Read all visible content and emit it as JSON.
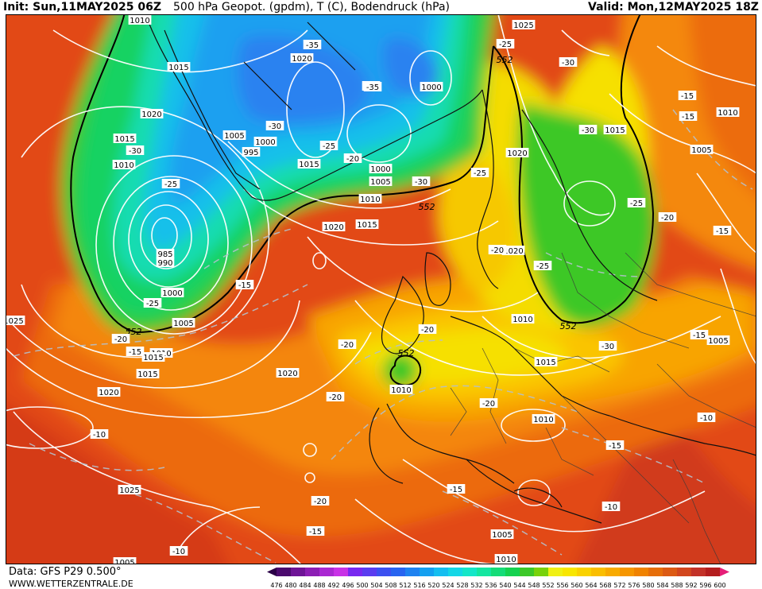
{
  "header": {
    "init": "Init: Sun,11MAY2025 06Z",
    "title": "500 hPa Geopot. (gpdm), T (C), Bodendruck (hPa)",
    "valid": "Valid: Mon,12MAY2025 18Z"
  },
  "footer": {
    "data_source": "Data: GFS P29 0.500°",
    "website": "WWW.WETTERZENTRALE.DE"
  },
  "legend": {
    "values": [
      "476",
      "480",
      "484",
      "488",
      "492",
      "496",
      "500",
      "504",
      "508",
      "512",
      "516",
      "520",
      "524",
      "528",
      "532",
      "536",
      "540",
      "544",
      "548",
      "552",
      "556",
      "560",
      "564",
      "568",
      "572",
      "576",
      "580",
      "584",
      "588",
      "592",
      "596",
      "600"
    ],
    "colors": [
      "#2a0046",
      "#4b0a6e",
      "#6e1496",
      "#8c1eb4",
      "#aa28d2",
      "#c832e6",
      "#7828f0",
      "#5a3cf0",
      "#3c50f0",
      "#2864f0",
      "#1e82f0",
      "#14a0f0",
      "#14bef0",
      "#14d7e6",
      "#14e6c8",
      "#14e6a0",
      "#14dc78",
      "#14d250",
      "#3cc828",
      "#78d20a",
      "#f0f014",
      "#f8e600",
      "#fad200",
      "#fabe00",
      "#f8aa00",
      "#f69600",
      "#f08200",
      "#e66e0a",
      "#dc5a14",
      "#d2461e",
      "#c33228",
      "#b41e1e",
      "#e61e78"
    ]
  },
  "map": {
    "geopotential_label": "552",
    "pressure_labels": [
      "1010",
      "1015",
      "1020",
      "1025",
      "1005",
      "1000",
      "995",
      "990",
      "985"
    ],
    "temperature_labels": [
      "-10",
      "-15",
      "-20",
      "-25",
      "-30",
      "-35"
    ],
    "pressure_label_texts": [
      "1010",
      "1015",
      "1020",
      "1015",
      "1010",
      "1020",
      "985",
      "990",
      "1000",
      "1005",
      "1010",
      "1015",
      "1020",
      "1025",
      "1020",
      "1005",
      "995",
      "1000",
      "1015",
      "1000",
      "1005",
      "1010",
      "1015",
      "1020",
      "1025",
      "1000",
      "1020",
      "1015",
      "1010",
      "1005",
      "1020",
      "1010",
      "1015",
      "1010",
      "1005",
      "1010",
      "1005",
      "1025",
      "1015",
      "1010",
      "1005"
    ],
    "temperature_label_texts": [
      "-35",
      "-35",
      "-25",
      "-30",
      "-30",
      "-25",
      "-25",
      "-20",
      "-15",
      "-20",
      "-35",
      "-30",
      "-25",
      "-20",
      "-30",
      "-25",
      "-20",
      "-15",
      "-20",
      "-20",
      "-25",
      "-30",
      "-15",
      "-20",
      "-15",
      "-25",
      "-10",
      "-15",
      "-20",
      "-15",
      "-10",
      "-10",
      "-15",
      "-30",
      "-15",
      "-15",
      "-10",
      "-20"
    ],
    "geopotential_label_texts": [
      "552",
      "552",
      "552",
      "552",
      "552"
    ]
  }
}
